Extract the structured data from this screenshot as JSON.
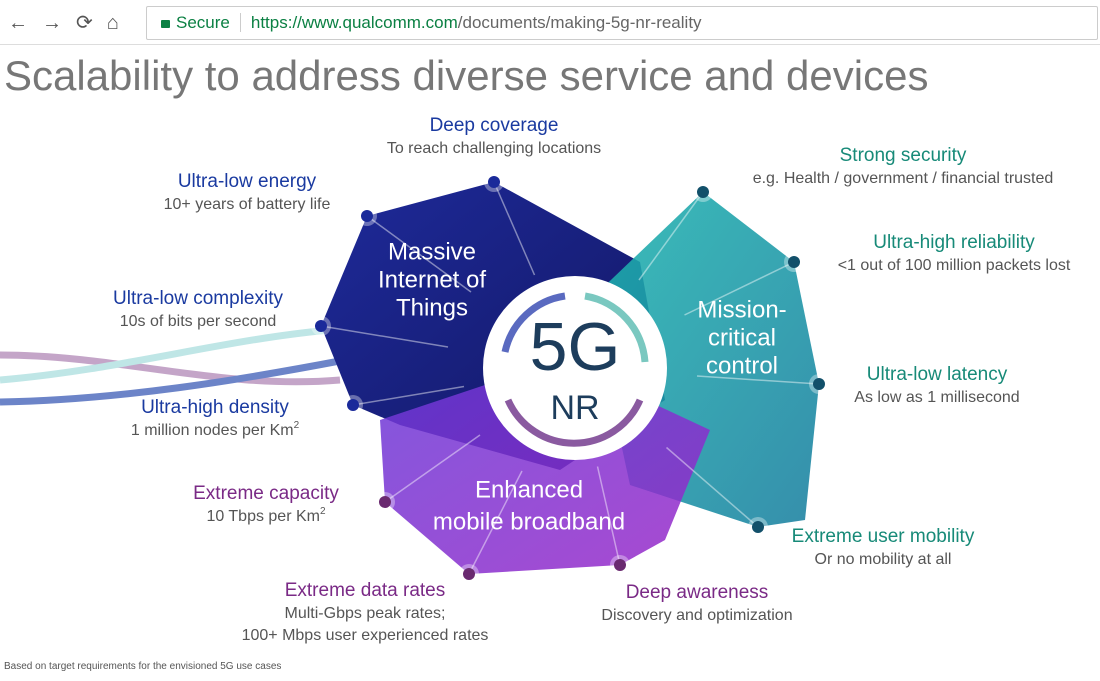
{
  "browser": {
    "secure": "Secure",
    "url_host": "https://www.qualcomm.com",
    "url_path": "/documents/making-5g-nr-reality"
  },
  "slide": {
    "title": "Scalability to address diverse service and devices",
    "center": {
      "line1": "5G",
      "line2": "NR"
    },
    "regions": [
      {
        "lines": [
          "Massive",
          "Internet of",
          "Things"
        ]
      },
      {
        "lines": [
          "Mission-",
          "critical",
          "control"
        ]
      },
      {
        "lines": [
          "Enhanced",
          "mobile broadband"
        ]
      }
    ],
    "features": [
      {
        "title": "Deep coverage",
        "subtitle": [
          "To reach challenging locations"
        ]
      },
      {
        "title": "Ultra-low energy",
        "subtitle": [
          "10+ years of battery life"
        ]
      },
      {
        "title": "Ultra-low complexity",
        "subtitle": [
          "10s of bits per second"
        ]
      },
      {
        "title": "Ultra-high density",
        "subtitle": [
          "1 million nodes per Km"
        ],
        "sup": "2"
      },
      {
        "title": "Extreme capacity",
        "subtitle": [
          "10 Tbps per Km"
        ],
        "sup": "2"
      },
      {
        "title": "Extreme data rates",
        "subtitle": [
          "Multi-Gbps peak rates;",
          "100+ Mbps user experienced rates"
        ]
      },
      {
        "title": "Deep awareness",
        "subtitle": [
          "Discovery and optimization"
        ]
      },
      {
        "title": "Extreme user mobility",
        "subtitle": [
          "Or no mobility at all"
        ]
      },
      {
        "title": "Ultra-low latency",
        "subtitle": [
          "As low as 1 millisecond"
        ]
      },
      {
        "title": "Ultra-high reliability",
        "subtitle": [
          "<1 out of 100 million packets lost"
        ]
      },
      {
        "title": "Strong security",
        "subtitle": [
          "e.g. Health / government / financial trusted"
        ]
      }
    ],
    "footnote": "Based on target requirements for the envisioned 5G use cases"
  }
}
